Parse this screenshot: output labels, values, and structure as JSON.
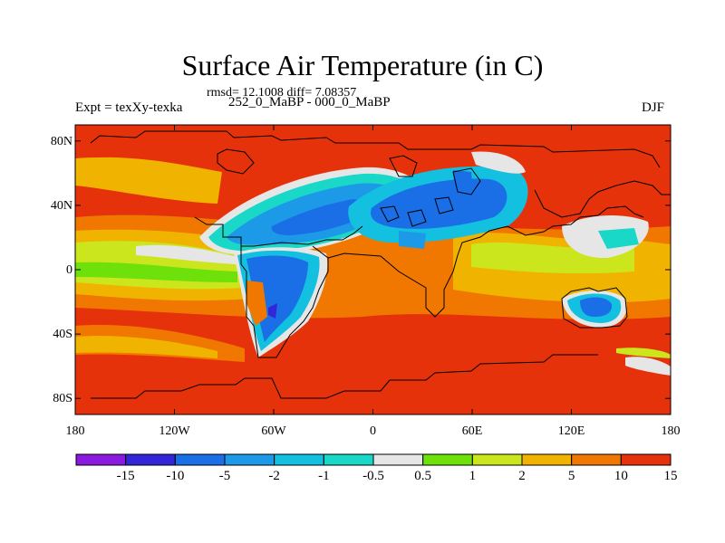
{
  "header": {
    "title": "Surface Air Temperature (in C)",
    "stats": "rmsd= 12.1008 diff= 7.08357",
    "experiment": "Expt = texXy-texka",
    "subtitle": "252_0_MaBP - 000_0_MaBP",
    "season": "DJF"
  },
  "axes": {
    "y_ticks": [
      {
        "label": "80N",
        "value": 80
      },
      {
        "label": "40N",
        "value": 40
      },
      {
        "label": "0",
        "value": 0
      },
      {
        "label": "40S",
        "value": -40
      },
      {
        "label": "80S",
        "value": -80
      }
    ],
    "x_ticks": [
      {
        "label": "180",
        "value": -180
      },
      {
        "label": "120W",
        "value": -120
      },
      {
        "label": "60W",
        "value": -60
      },
      {
        "label": "0",
        "value": 0
      },
      {
        "label": "60E",
        "value": 60
      },
      {
        "label": "120E",
        "value": 120
      },
      {
        "label": "180",
        "value": 180
      }
    ],
    "lon_range": [
      -180,
      180
    ],
    "lat_range": [
      -90,
      90
    ]
  },
  "colorbar": {
    "colors": [
      "#8a1ae0",
      "#3226d8",
      "#1a6ee6",
      "#1c9ae8",
      "#14c0e0",
      "#1ad8c8",
      "#e6e6e6",
      "#6ee00a",
      "#cce61e",
      "#f0b400",
      "#f07800",
      "#e6320a"
    ],
    "labels": [
      "-15",
      "-10",
      "-5",
      "-2",
      "-1",
      "-0.5",
      "0.5",
      "1",
      "2",
      "5",
      "10",
      "15"
    ]
  },
  "colors": {
    "ocean_background": "#e6320a",
    "frame": "#000000"
  }
}
